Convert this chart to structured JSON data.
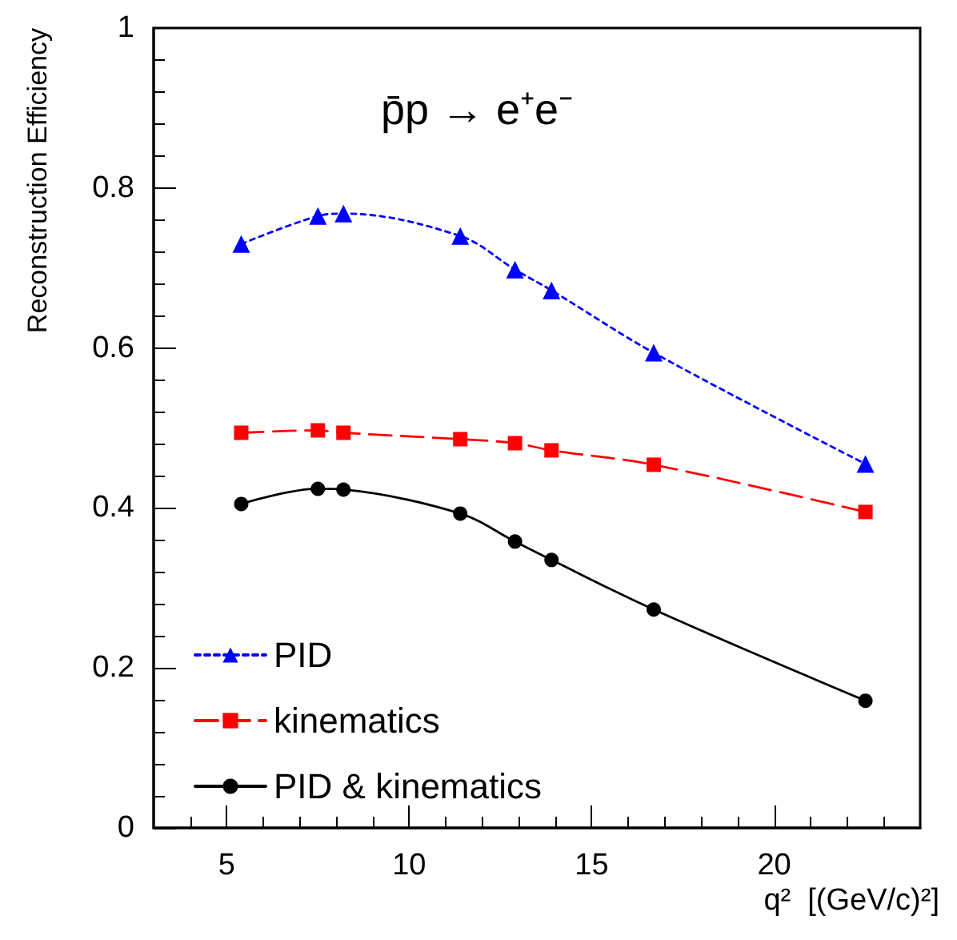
{
  "chart_data": {
    "type": "line",
    "title": "p̄p → e⁺e⁻",
    "xlabel": "q²  [(GeV/c)²]",
    "ylabel": "Reconstruction Efficiency",
    "x": [
      5.4,
      7.5,
      8.2,
      11.4,
      12.9,
      13.9,
      16.7,
      22.5
    ],
    "series": [
      {
        "name": "PID",
        "color": "#0000ff",
        "marker": "triangle",
        "line_style": "dotted",
        "values": [
          0.73,
          0.765,
          0.768,
          0.74,
          0.698,
          0.672,
          0.594,
          0.455
        ]
      },
      {
        "name": "kinematics",
        "color": "#ff0000",
        "marker": "square",
        "line_style": "dashed",
        "values": [
          0.494,
          0.497,
          0.494,
          0.486,
          0.481,
          0.472,
          0.454,
          0.395
        ]
      },
      {
        "name": "PID & kinematics",
        "color": "#000000",
        "marker": "circle",
        "line_style": "solid",
        "values": [
          0.405,
          0.424,
          0.423,
          0.393,
          0.358,
          0.335,
          0.273,
          0.159
        ]
      }
    ],
    "xlim": [
      3,
      24
    ],
    "xticks": [
      5,
      10,
      15,
      20
    ],
    "ylim": [
      0,
      1
    ],
    "yticks": [
      0,
      0.2,
      0.4,
      0.6,
      0.8,
      1
    ],
    "grid": false,
    "legend": "bottom left"
  }
}
